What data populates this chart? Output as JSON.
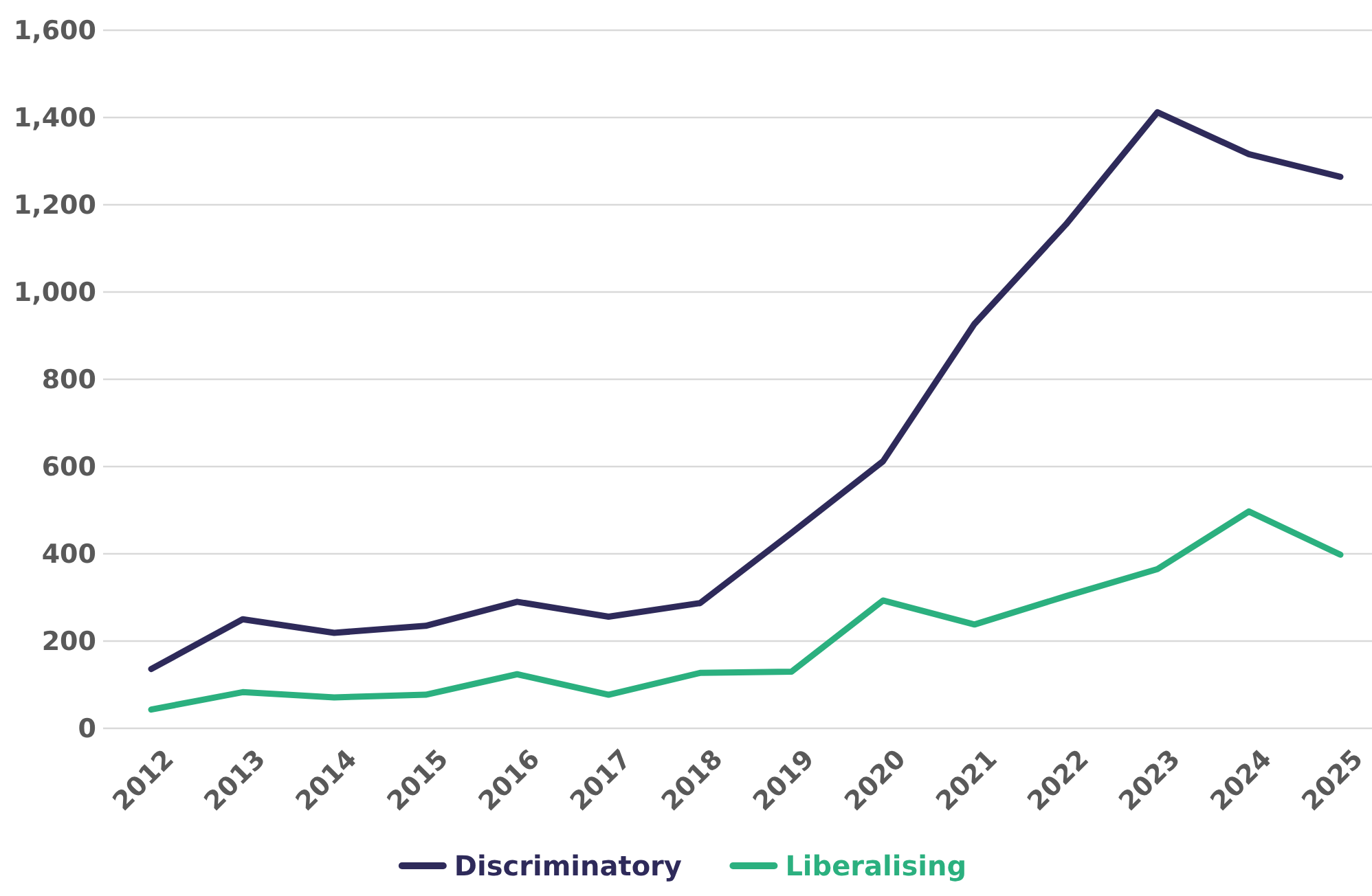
{
  "chart_data": {
    "type": "line",
    "categories": [
      "2012",
      "2013",
      "2014",
      "2015",
      "2016",
      "2017",
      "2018",
      "2019",
      "2020",
      "2021",
      "2022",
      "2023",
      "2024",
      "2025"
    ],
    "series": [
      {
        "name": "Discriminatory",
        "color": "#2e2a5a",
        "values": [
          136,
          250,
          219,
          235,
          290,
          256,
          287,
          448,
          612,
          927,
          1155,
          1412,
          1316,
          1264
        ]
      },
      {
        "name": "Liberalising",
        "color": "#2bb07f",
        "values": [
          43,
          83,
          71,
          77,
          124,
          77,
          127,
          130,
          293,
          238,
          303,
          365,
          497,
          398
        ]
      }
    ],
    "ylim": [
      0,
      1600
    ],
    "yticks": [
      {
        "value": 0,
        "label": "0"
      },
      {
        "value": 200,
        "label": "200"
      },
      {
        "value": 400,
        "label": "400"
      },
      {
        "value": 600,
        "label": "600"
      },
      {
        "value": 800,
        "label": "800"
      },
      {
        "value": 1000,
        "label": "1,000"
      },
      {
        "value": 1200,
        "label": "1,200"
      },
      {
        "value": 1400,
        "label": "1,400"
      },
      {
        "value": 1600,
        "label": "1,600"
      }
    ],
    "grid": "y",
    "legend": "bottom",
    "marker": "none",
    "line_style": "solid"
  }
}
